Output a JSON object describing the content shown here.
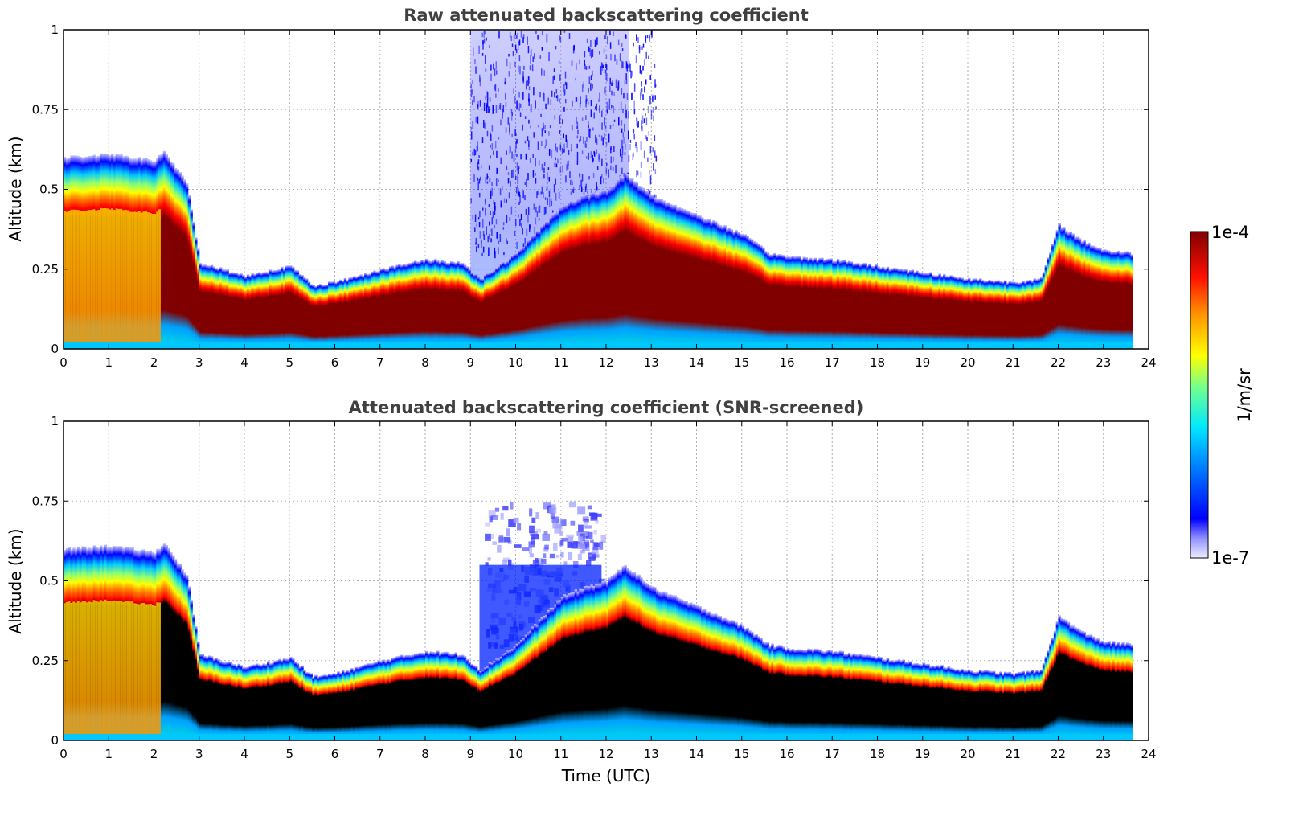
{
  "chart_data": [
    {
      "type": "heatmap",
      "title": "Raw attenuated backscattering coefficient",
      "xlabel": "",
      "ylabel": "Altitude (km)",
      "xlim": [
        0,
        24
      ],
      "ylim": [
        0,
        1
      ],
      "x_ticks": [
        "0",
        "1",
        "2",
        "3",
        "4",
        "5",
        "6",
        "7",
        "8",
        "9",
        "10",
        "11",
        "12",
        "13",
        "14",
        "15",
        "16",
        "17",
        "18",
        "19",
        "20",
        "21",
        "22",
        "23",
        "24"
      ],
      "y_ticks": [
        "0",
        "0.25",
        "0.5",
        "0.75",
        "1"
      ],
      "grid": true,
      "layers": {
        "boundary_layer_top_km": {
          "time_h": [
            0,
            1,
            2,
            2.2,
            2.7,
            3,
            4,
            5,
            5.5,
            6,
            7,
            8,
            8.8,
            9.2,
            10,
            11,
            11.5,
            12,
            12.4,
            13,
            14,
            15,
            15.6,
            16,
            17,
            18,
            19,
            20,
            21,
            21.6,
            22,
            22.5,
            23,
            23.65
          ],
          "top_km": [
            0.6,
            0.61,
            0.59,
            0.62,
            0.52,
            0.27,
            0.23,
            0.26,
            0.2,
            0.21,
            0.25,
            0.28,
            0.27,
            0.22,
            0.3,
            0.45,
            0.48,
            0.5,
            0.55,
            0.48,
            0.42,
            0.36,
            0.3,
            0.29,
            0.28,
            0.26,
            0.24,
            0.22,
            0.21,
            0.22,
            0.39,
            0.34,
            0.31,
            0.3
          ]
        },
        "noise_region_time_h": [
          9,
          12.5
        ]
      },
      "colorbar": {
        "label": "1/m/sr",
        "min_label": "1e-7",
        "max_label": "1e-4",
        "scale": "log"
      }
    },
    {
      "type": "heatmap",
      "title": "Attenuated backscattering coefficient (SNR-screened)",
      "xlabel": "Time (UTC)",
      "ylabel": "Altitude (km)",
      "xlim": [
        0,
        24
      ],
      "ylim": [
        0,
        1
      ],
      "x_ticks": [
        "0",
        "1",
        "2",
        "3",
        "4",
        "5",
        "6",
        "7",
        "8",
        "9",
        "10",
        "11",
        "12",
        "13",
        "14",
        "15",
        "16",
        "17",
        "18",
        "19",
        "20",
        "21",
        "22",
        "23",
        "24"
      ],
      "y_ticks": [
        "0",
        "0.25",
        "0.5",
        "0.75",
        "1"
      ],
      "grid": true,
      "screened_saturated_color": "#000000"
    }
  ],
  "colors": {
    "cmap_low": "#e8e8ff",
    "cmap_blue": "#0000ff",
    "cmap_cyan": "#00e5ff",
    "cmap_green": "#7fff7f",
    "cmap_yellow": "#ffff00",
    "cmap_orange": "#ff8000",
    "cmap_red": "#ff0000",
    "cmap_high": "#800000"
  }
}
